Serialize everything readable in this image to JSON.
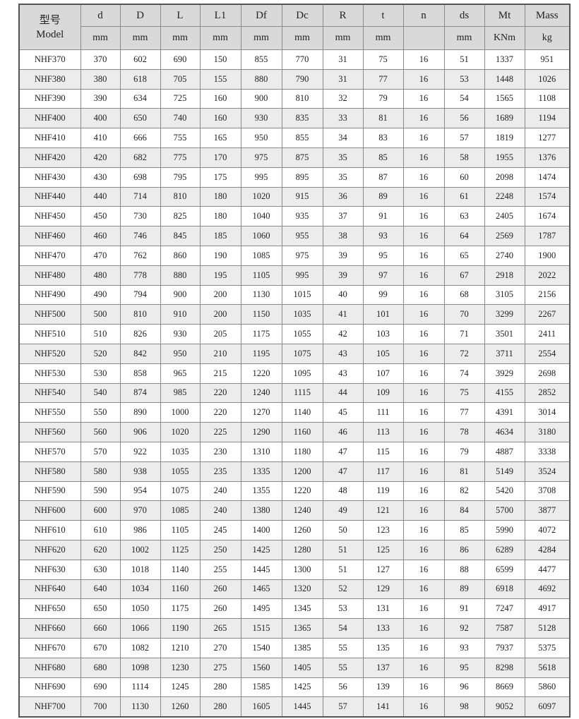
{
  "header": {
    "model_label_ko": "型号",
    "model_label": "Model",
    "columns": [
      "d",
      "D",
      "L",
      "L1",
      "Df",
      "Dc",
      "R",
      "t",
      "n",
      "ds",
      "Mt",
      "Mass"
    ],
    "units": [
      "mm",
      "mm",
      "mm",
      "mm",
      "mm",
      "mm",
      "mm",
      "mm",
      "",
      "mm",
      "KNm",
      "kg"
    ]
  },
  "rows": [
    [
      "NHF370",
      "370",
      "602",
      "690",
      "150",
      "855",
      "770",
      "31",
      "75",
      "16",
      "51",
      "1337",
      "951"
    ],
    [
      "NHF380",
      "380",
      "618",
      "705",
      "155",
      "880",
      "790",
      "31",
      "77",
      "16",
      "53",
      "1448",
      "1026"
    ],
    [
      "NHF390",
      "390",
      "634",
      "725",
      "160",
      "900",
      "810",
      "32",
      "79",
      "16",
      "54",
      "1565",
      "1108"
    ],
    [
      "NHF400",
      "400",
      "650",
      "740",
      "160",
      "930",
      "835",
      "33",
      "81",
      "16",
      "56",
      "1689",
      "1194"
    ],
    [
      "NHF410",
      "410",
      "666",
      "755",
      "165",
      "950",
      "855",
      "34",
      "83",
      "16",
      "57",
      "1819",
      "1277"
    ],
    [
      "NHF420",
      "420",
      "682",
      "775",
      "170",
      "975",
      "875",
      "35",
      "85",
      "16",
      "58",
      "1955",
      "1376"
    ],
    [
      "NHF430",
      "430",
      "698",
      "795",
      "175",
      "995",
      "895",
      "35",
      "87",
      "16",
      "60",
      "2098",
      "1474"
    ],
    [
      "NHF440",
      "440",
      "714",
      "810",
      "180",
      "1020",
      "915",
      "36",
      "89",
      "16",
      "61",
      "2248",
      "1574"
    ],
    [
      "NHF450",
      "450",
      "730",
      "825",
      "180",
      "1040",
      "935",
      "37",
      "91",
      "16",
      "63",
      "2405",
      "1674"
    ],
    [
      "NHF460",
      "460",
      "746",
      "845",
      "185",
      "1060",
      "955",
      "38",
      "93",
      "16",
      "64",
      "2569",
      "1787"
    ],
    [
      "NHF470",
      "470",
      "762",
      "860",
      "190",
      "1085",
      "975",
      "39",
      "95",
      "16",
      "65",
      "2740",
      "1900"
    ],
    [
      "NHF480",
      "480",
      "778",
      "880",
      "195",
      "1105",
      "995",
      "39",
      "97",
      "16",
      "67",
      "2918",
      "2022"
    ],
    [
      "NHF490",
      "490",
      "794",
      "900",
      "200",
      "1130",
      "1015",
      "40",
      "99",
      "16",
      "68",
      "3105",
      "2156"
    ],
    [
      "NHF500",
      "500",
      "810",
      "910",
      "200",
      "1150",
      "1035",
      "41",
      "101",
      "16",
      "70",
      "3299",
      "2267"
    ],
    [
      "NHF510",
      "510",
      "826",
      "930",
      "205",
      "1175",
      "1055",
      "42",
      "103",
      "16",
      "71",
      "3501",
      "2411"
    ],
    [
      "NHF520",
      "520",
      "842",
      "950",
      "210",
      "1195",
      "1075",
      "43",
      "105",
      "16",
      "72",
      "3711",
      "2554"
    ],
    [
      "NHF530",
      "530",
      "858",
      "965",
      "215",
      "1220",
      "1095",
      "43",
      "107",
      "16",
      "74",
      "3929",
      "2698"
    ],
    [
      "NHF540",
      "540",
      "874",
      "985",
      "220",
      "1240",
      "1115",
      "44",
      "109",
      "16",
      "75",
      "4155",
      "2852"
    ],
    [
      "NHF550",
      "550",
      "890",
      "1000",
      "220",
      "1270",
      "1140",
      "45",
      "111",
      "16",
      "77",
      "4391",
      "3014"
    ],
    [
      "NHF560",
      "560",
      "906",
      "1020",
      "225",
      "1290",
      "1160",
      "46",
      "113",
      "16",
      "78",
      "4634",
      "3180"
    ],
    [
      "NHF570",
      "570",
      "922",
      "1035",
      "230",
      "1310",
      "1180",
      "47",
      "115",
      "16",
      "79",
      "4887",
      "3338"
    ],
    [
      "NHF580",
      "580",
      "938",
      "1055",
      "235",
      "1335",
      "1200",
      "47",
      "117",
      "16",
      "81",
      "5149",
      "3524"
    ],
    [
      "NHF590",
      "590",
      "954",
      "1075",
      "240",
      "1355",
      "1220",
      "48",
      "119",
      "16",
      "82",
      "5420",
      "3708"
    ],
    [
      "NHF600",
      "600",
      "970",
      "1085",
      "240",
      "1380",
      "1240",
      "49",
      "121",
      "16",
      "84",
      "5700",
      "3877"
    ],
    [
      "NHF610",
      "610",
      "986",
      "1105",
      "245",
      "1400",
      "1260",
      "50",
      "123",
      "16",
      "85",
      "5990",
      "4072"
    ],
    [
      "NHF620",
      "620",
      "1002",
      "1125",
      "250",
      "1425",
      "1280",
      "51",
      "125",
      "16",
      "86",
      "6289",
      "4284"
    ],
    [
      "NHF630",
      "630",
      "1018",
      "1140",
      "255",
      "1445",
      "1300",
      "51",
      "127",
      "16",
      "88",
      "6599",
      "4477"
    ],
    [
      "NHF640",
      "640",
      "1034",
      "1160",
      "260",
      "1465",
      "1320",
      "52",
      "129",
      "16",
      "89",
      "6918",
      "4692"
    ],
    [
      "NHF650",
      "650",
      "1050",
      "1175",
      "260",
      "1495",
      "1345",
      "53",
      "131",
      "16",
      "91",
      "7247",
      "4917"
    ],
    [
      "NHF660",
      "660",
      "1066",
      "1190",
      "265",
      "1515",
      "1365",
      "54",
      "133",
      "16",
      "92",
      "7587",
      "5128"
    ],
    [
      "NHF670",
      "670",
      "1082",
      "1210",
      "270",
      "1540",
      "1385",
      "55",
      "135",
      "16",
      "93",
      "7937",
      "5375"
    ],
    [
      "NHF680",
      "680",
      "1098",
      "1230",
      "275",
      "1560",
      "1405",
      "55",
      "137",
      "16",
      "95",
      "8298",
      "5618"
    ],
    [
      "NHF690",
      "690",
      "1114",
      "1245",
      "280",
      "1585",
      "1425",
      "56",
      "139",
      "16",
      "96",
      "8669",
      "5860"
    ],
    [
      "NHF700",
      "700",
      "1130",
      "1260",
      "280",
      "1605",
      "1445",
      "57",
      "141",
      "16",
      "98",
      "9052",
      "6097"
    ]
  ]
}
